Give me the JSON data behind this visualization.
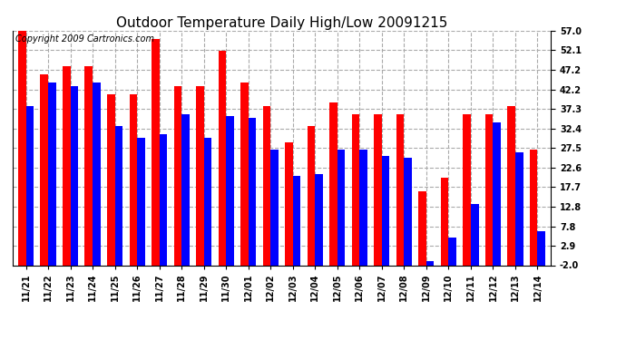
{
  "title": "Outdoor Temperature Daily High/Low 20091215",
  "copyright": "Copyright 2009 Cartronics.com",
  "dates": [
    "11/21",
    "11/22",
    "11/23",
    "11/24",
    "11/25",
    "11/26",
    "11/27",
    "11/28",
    "11/29",
    "11/30",
    "12/01",
    "12/02",
    "12/03",
    "12/04",
    "12/05",
    "12/06",
    "12/07",
    "12/08",
    "12/09",
    "12/10",
    "12/11",
    "12/12",
    "12/13",
    "12/14"
  ],
  "highs": [
    57.0,
    46.0,
    48.0,
    48.0,
    41.0,
    41.0,
    55.0,
    43.0,
    43.0,
    52.0,
    44.0,
    38.0,
    29.0,
    33.0,
    39.0,
    36.0,
    36.0,
    36.0,
    16.5,
    20.0,
    36.0,
    36.0,
    38.0,
    27.0
  ],
  "lows": [
    38.0,
    44.0,
    43.0,
    44.0,
    33.0,
    30.0,
    31.0,
    36.0,
    30.0,
    35.5,
    35.0,
    27.0,
    20.5,
    21.0,
    27.0,
    27.0,
    25.5,
    25.0,
    -1.0,
    5.0,
    13.5,
    34.0,
    26.5,
    6.5
  ],
  "high_color": "#ff0000",
  "low_color": "#0000ff",
  "bg_color": "#ffffff",
  "grid_color": "#aaaaaa",
  "yticks": [
    -2.0,
    2.9,
    7.8,
    12.8,
    17.7,
    22.6,
    27.5,
    32.4,
    37.3,
    42.2,
    47.2,
    52.1,
    57.0
  ],
  "ymin": -2.0,
  "ymax": 57.0,
  "title_fontsize": 11,
  "copyright_fontsize": 7
}
